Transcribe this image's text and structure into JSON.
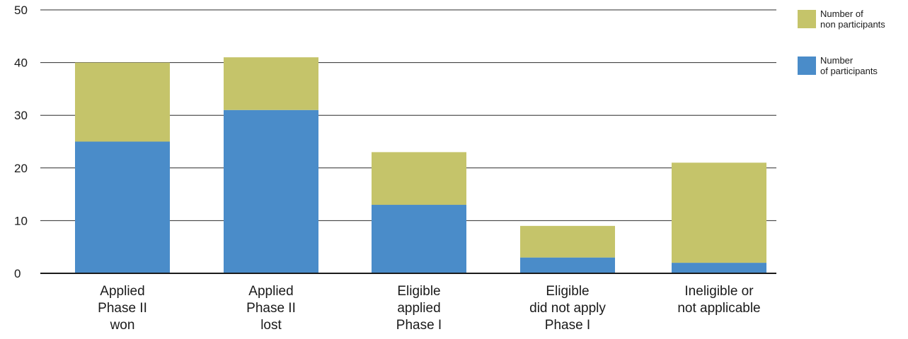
{
  "chart_data": {
    "type": "bar",
    "stacked": true,
    "categories": [
      [
        "Applied",
        "Phase II",
        "won"
      ],
      [
        "Applied",
        "Phase II",
        "lost"
      ],
      [
        "Eligible",
        "applied",
        "Phase I"
      ],
      [
        "Eligible",
        "did not apply",
        "Phase I"
      ],
      [
        "Ineligible or",
        "not applicable"
      ]
    ],
    "series": [
      {
        "name": "Number of participants",
        "legend_lines": [
          "Number",
          "of participants"
        ],
        "color": "#4a8cc9",
        "values": [
          25,
          31,
          13,
          3,
          2
        ]
      },
      {
        "name": "Number of non participants",
        "legend_lines": [
          "Number of",
          "non participants"
        ],
        "color": "#c5c46a",
        "values": [
          15,
          10,
          10,
          6,
          19
        ]
      }
    ],
    "ylim": [
      0,
      50
    ],
    "yticks": [
      0,
      10,
      20,
      30,
      40,
      50
    ],
    "grid": true,
    "legend_position": "top-right",
    "title": "",
    "xlabel": "",
    "ylabel": ""
  }
}
